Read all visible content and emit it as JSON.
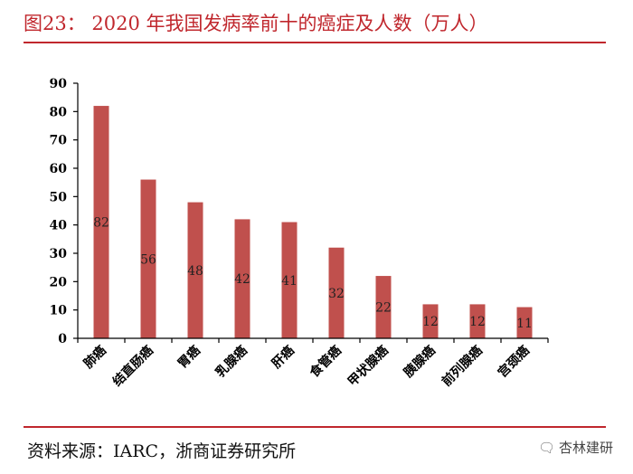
{
  "header": {
    "title": "图23： 2020 年我国发病率前十的癌症及人数（万人）"
  },
  "chart_data": {
    "type": "bar",
    "title": "2020 年我国发病率前十的癌症及人数（万人）",
    "categories": [
      "肺癌",
      "结直肠癌",
      "胃癌",
      "乳腺癌",
      "肝癌",
      "食管癌",
      "甲状腺癌",
      "胰腺癌",
      "前列腺癌",
      "宫颈癌"
    ],
    "values": [
      82,
      56,
      48,
      42,
      41,
      32,
      22,
      12,
      12,
      11
    ],
    "data_labels": [
      "82",
      "56",
      "48",
      "42",
      "41",
      "32",
      "22",
      "12",
      "12",
      "11"
    ],
    "ylim": [
      0,
      90
    ],
    "yticks": [
      0,
      10,
      20,
      30,
      40,
      50,
      60,
      70,
      80,
      90
    ],
    "ytick_labels": [
      "0",
      "10",
      "20",
      "30",
      "40",
      "50",
      "60",
      "70",
      "80",
      "90"
    ],
    "xlabel": "",
    "ylabel": "",
    "bar_color": "#c0504d",
    "grid": false,
    "legend": "none"
  },
  "footer": {
    "source": "资料来源：IARC，浙商证券研究所",
    "watermark_icon": "wechat-icon",
    "watermark_text": "杏林建研"
  },
  "colors": {
    "accent": "#c0272d",
    "bar": "#c0504d"
  }
}
